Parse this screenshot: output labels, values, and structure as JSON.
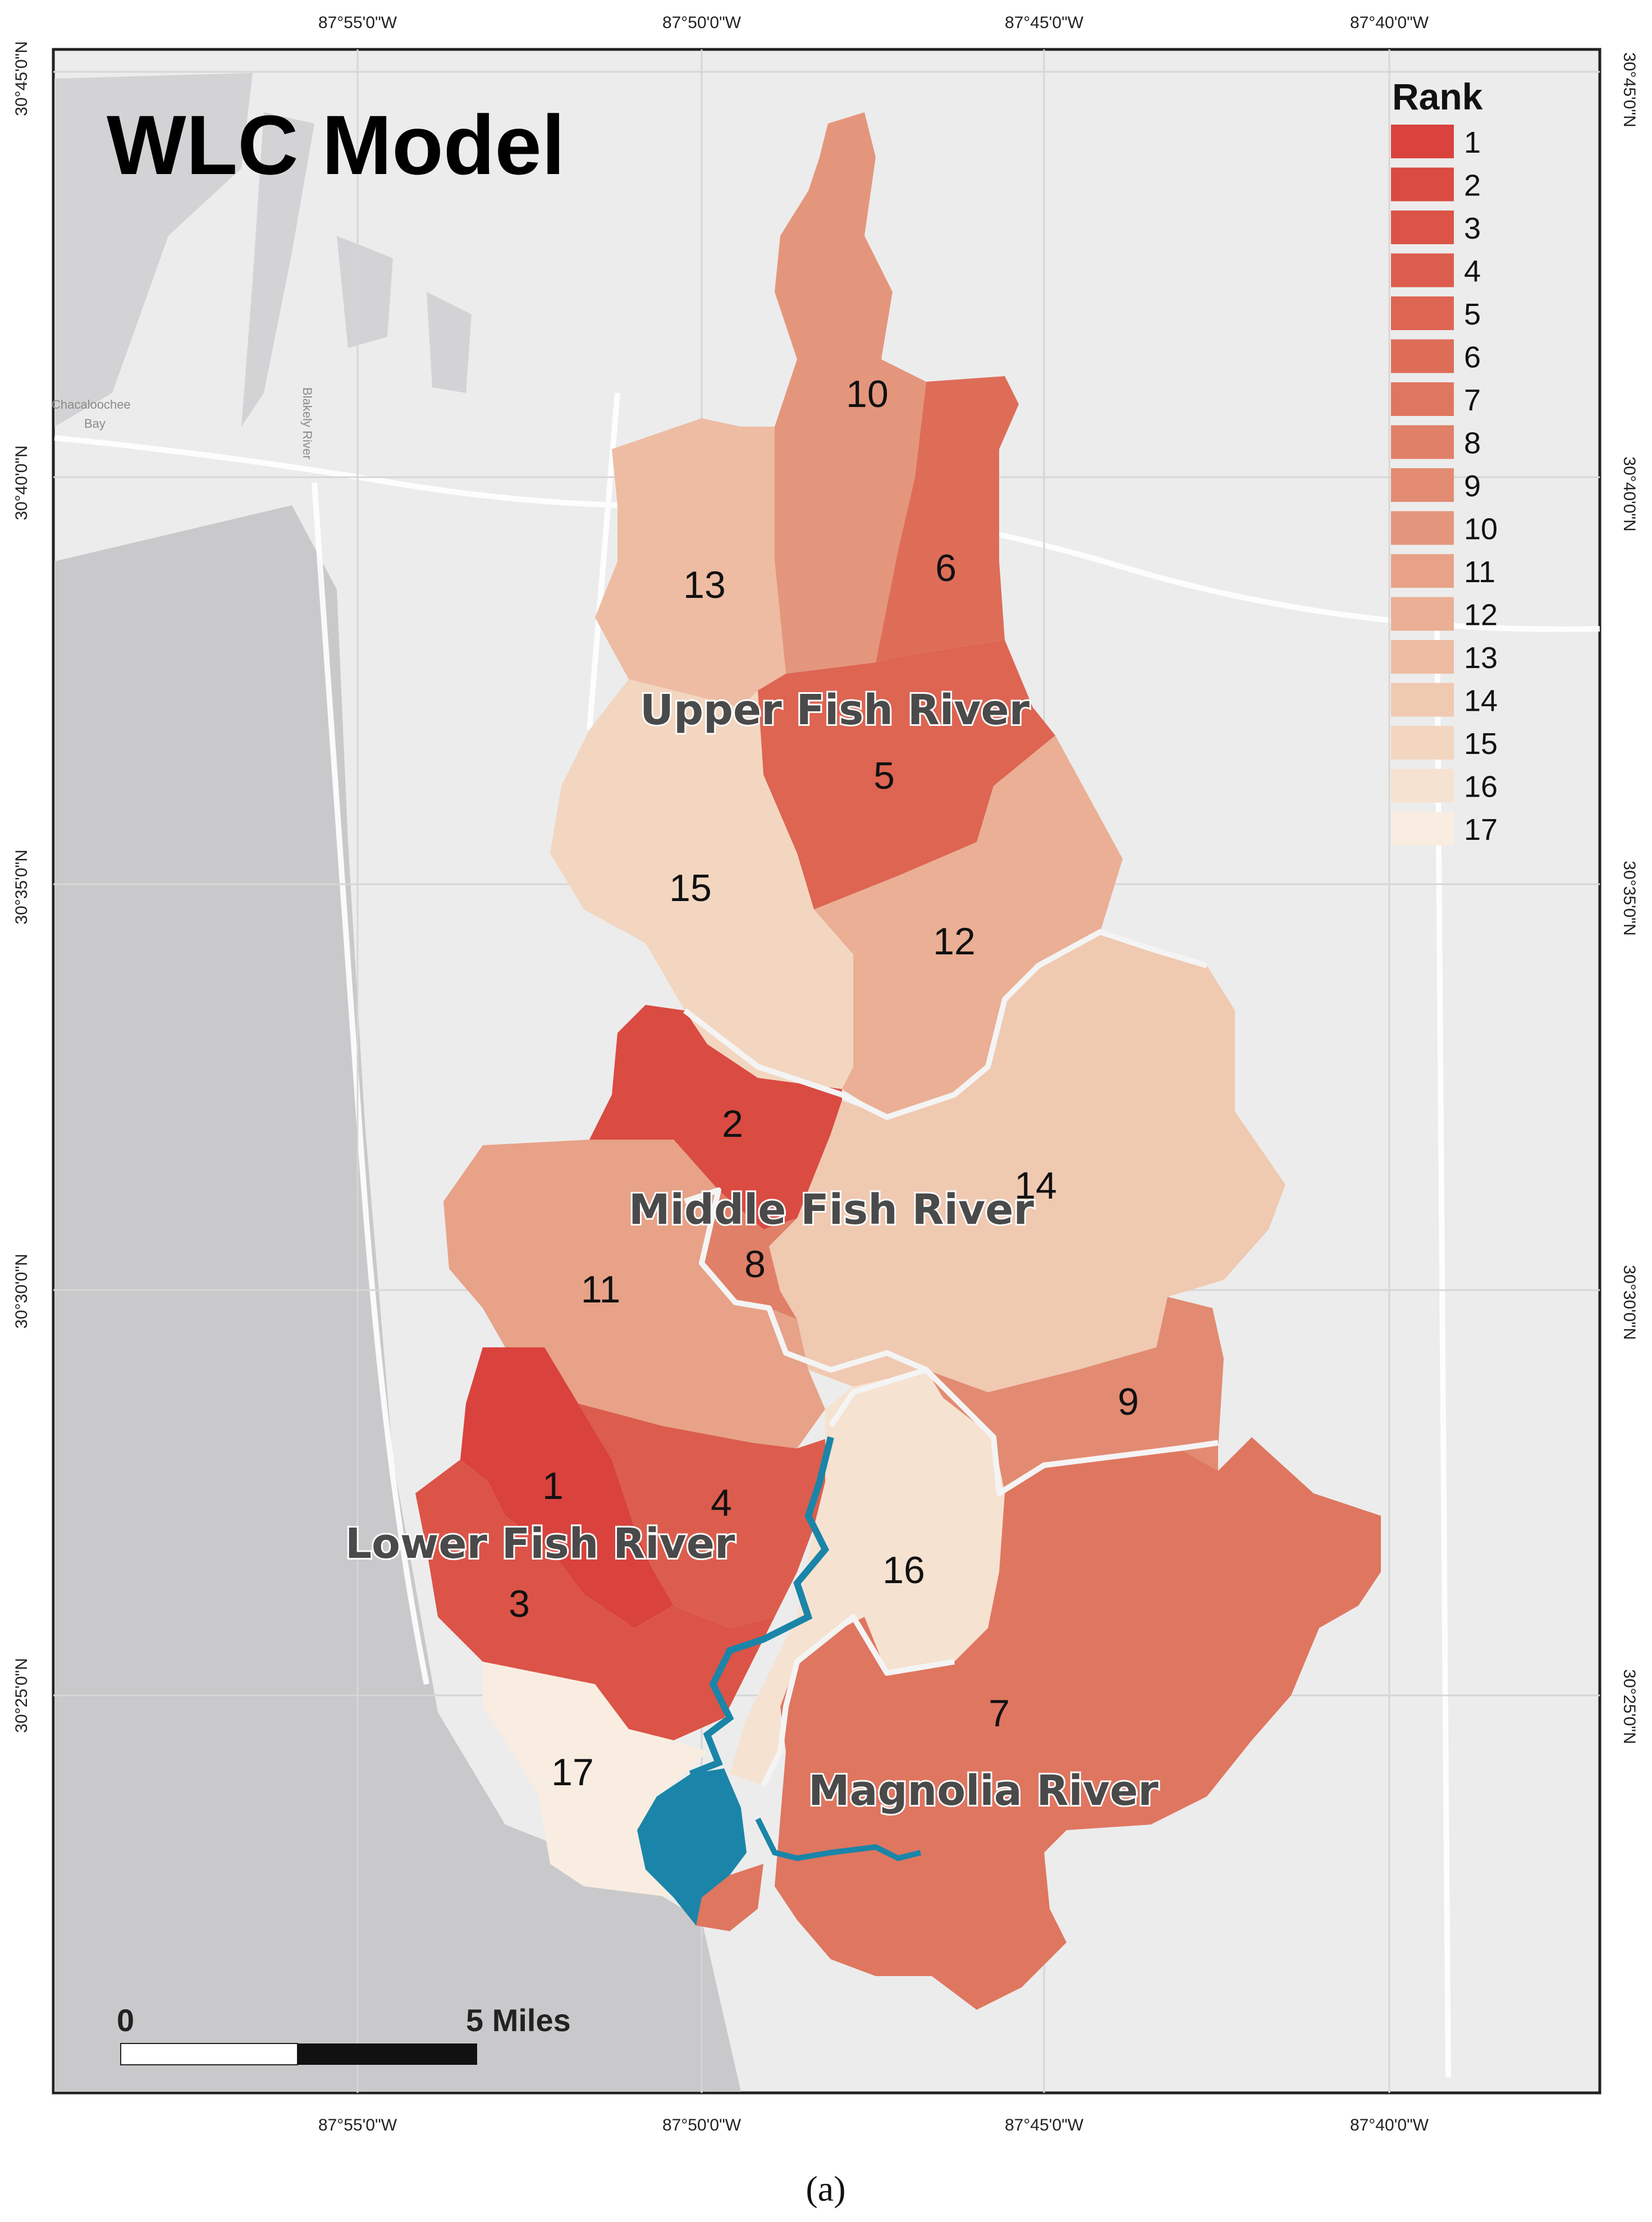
{
  "map": {
    "title": "WLC Model",
    "caption": "(a)",
    "longitude_ticks": [
      "87°55'0\"W",
      "87°50'0\"W",
      "87°45'0\"W",
      "87°40'0\"W"
    ],
    "latitude_ticks": [
      "30°45'0\"N",
      "30°40'0\"N",
      "30°35'0\"N",
      "30°30'0\"N",
      "30°25'0\"N"
    ],
    "place_labels": [
      "Chacaloochee",
      "Bay",
      "Blakely River"
    ],
    "legend": {
      "title": "Rank",
      "items": [
        {
          "label": "1",
          "color": "#d9423d"
        },
        {
          "label": "2",
          "color": "#da4b42"
        },
        {
          "label": "3",
          "color": "#db5447"
        },
        {
          "label": "4",
          "color": "#dc5d4d"
        },
        {
          "label": "5",
          "color": "#dd6552"
        },
        {
          "label": "6",
          "color": "#de6d58"
        },
        {
          "label": "7",
          "color": "#df7660"
        },
        {
          "label": "8",
          "color": "#e08068"
        },
        {
          "label": "9",
          "color": "#e28b72"
        },
        {
          "label": "10",
          "color": "#e4967d"
        },
        {
          "label": "11",
          "color": "#e7a288"
        },
        {
          "label": "12",
          "color": "#eaaf95"
        },
        {
          "label": "13",
          "color": "#edbca3"
        },
        {
          "label": "14",
          "color": "#f0c9b1"
        },
        {
          "label": "15",
          "color": "#f3d6c0"
        },
        {
          "label": "16",
          "color": "#f6e2d1"
        },
        {
          "label": "17",
          "color": "#f9ede1"
        }
      ]
    },
    "subwatersheds": [
      {
        "rank": "1"
      },
      {
        "rank": "2"
      },
      {
        "rank": "3"
      },
      {
        "rank": "4"
      },
      {
        "rank": "5"
      },
      {
        "rank": "6"
      },
      {
        "rank": "7"
      },
      {
        "rank": "8"
      },
      {
        "rank": "9"
      },
      {
        "rank": "10"
      },
      {
        "rank": "11"
      },
      {
        "rank": "12"
      },
      {
        "rank": "13"
      },
      {
        "rank": "14"
      },
      {
        "rank": "15"
      },
      {
        "rank": "16"
      },
      {
        "rank": "17"
      }
    ],
    "regions": {
      "upper": "Upper Fish River",
      "middle": "Middle Fish River",
      "lower": "Lower Fish River",
      "magnolia": "Magnolia River"
    },
    "scale_bar": {
      "start_label": "0",
      "end_label": "5 Miles"
    },
    "colors": {
      "water": "#c9c9cb",
      "land": "#ececec",
      "river": "#1a85a8",
      "basemap_lines": "#ffffff"
    }
  }
}
